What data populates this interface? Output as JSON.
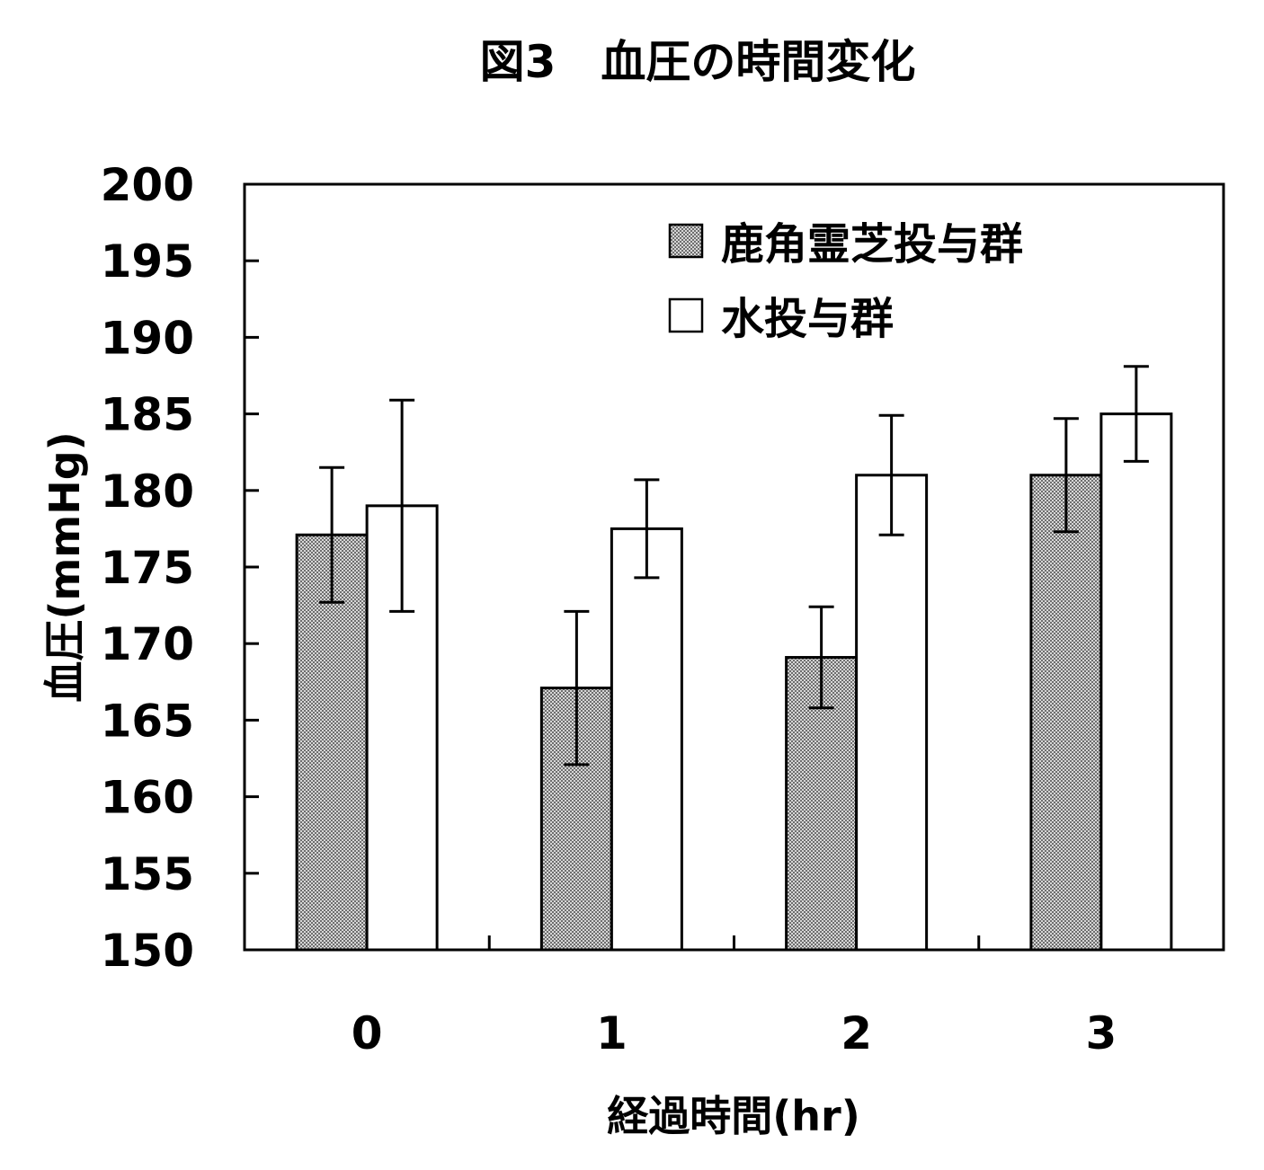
{
  "chart_data": {
    "type": "bar",
    "title": "図3　血圧の時間変化",
    "xlabel": "経過時間(hr)",
    "ylabel": "血圧(mmHg)",
    "categories": [
      "0",
      "1",
      "2",
      "3"
    ],
    "ylim": [
      150,
      200
    ],
    "yticks": [
      150,
      155,
      160,
      165,
      170,
      175,
      180,
      185,
      190,
      195,
      200
    ],
    "legend_position": "top-right",
    "grid": false,
    "series": [
      {
        "name": "鹿角霊芝投与群",
        "fill": "hatched-gray",
        "values": [
          177.1,
          167.1,
          169.1,
          181.0
        ],
        "error": [
          4.4,
          5.0,
          3.3,
          3.7
        ]
      },
      {
        "name": "水投与群",
        "fill": "white",
        "values": [
          179.0,
          177.5,
          181.0,
          185.0
        ],
        "error": [
          6.9,
          3.2,
          3.9,
          3.1
        ]
      }
    ]
  }
}
